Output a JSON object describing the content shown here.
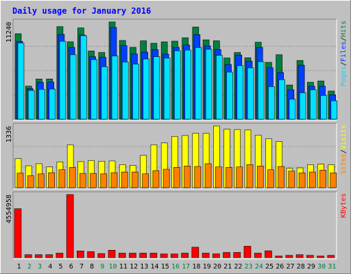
{
  "title": "Daily usage for January 2016",
  "colors": {
    "background": "#c0c0c0",
    "title": "#0000ff",
    "hits": "#008040",
    "files": "#0040ff",
    "pages": "#00e0ff",
    "visits": "#ffff00",
    "sites": "#ff8000",
    "kbytes": "#ff0000",
    "day_weekend": "#008040",
    "day_weekday": "#000000"
  },
  "chart_data": [
    {
      "type": "bar",
      "panel": "hits_files_pages",
      "max_label": "11240",
      "ylim": [
        0,
        11240
      ],
      "categories": [
        "1",
        "2",
        "3",
        "4",
        "5",
        "6",
        "7",
        "8",
        "9",
        "10",
        "11",
        "12",
        "13",
        "14",
        "15",
        "16",
        "17",
        "18",
        "19",
        "20",
        "21",
        "22",
        "23",
        "24",
        "25",
        "26",
        "27",
        "28",
        "29",
        "30",
        "31"
      ],
      "legend": [
        {
          "name": "Hits",
          "color": "#008040"
        },
        {
          "name": "Files",
          "color": "#0040ff"
        },
        {
          "name": "Pages",
          "color": "#00e0ff"
        }
      ],
      "series": [
        {
          "name": "Hits",
          "values": [
            9880,
            3820,
            4640,
            4650,
            10700,
            8950,
            10550,
            7880,
            7710,
            11240,
            9100,
            8300,
            9060,
            8780,
            8940,
            9020,
            9410,
            10650,
            9170,
            9060,
            7080,
            7710,
            7100,
            8890,
            6570,
            7450,
            3950,
            6790,
            4270,
            4420,
            3250
          ]
        },
        {
          "name": "Files",
          "values": [
            9000,
            3540,
            4260,
            4290,
            9800,
            8300,
            9740,
            7230,
            7150,
            10600,
            8500,
            7540,
            7750,
            8030,
            7520,
            8300,
            8570,
            9770,
            8470,
            8050,
            6320,
            7410,
            6710,
            8300,
            5950,
            5400,
            3400,
            6250,
            3810,
            3810,
            2820
          ]
        },
        {
          "name": "Pages",
          "values": [
            8800,
            3320,
            3460,
            3480,
            9010,
            7450,
            9650,
            6890,
            6070,
            7300,
            6610,
            6370,
            6960,
            7230,
            7060,
            7910,
            7990,
            8280,
            8080,
            7380,
            5450,
            6190,
            5940,
            6650,
            3770,
            4570,
            2310,
            3060,
            3400,
            2740,
            2130
          ]
        }
      ]
    },
    {
      "type": "bar",
      "panel": "visits_sites",
      "max_label": "1336",
      "ylim": [
        0,
        1336
      ],
      "categories": [
        "1",
        "2",
        "3",
        "4",
        "5",
        "6",
        "7",
        "8",
        "9",
        "10",
        "11",
        "12",
        "13",
        "14",
        "15",
        "16",
        "17",
        "18",
        "19",
        "20",
        "21",
        "22",
        "23",
        "24",
        "25",
        "26",
        "27",
        "28",
        "29",
        "30",
        "31"
      ],
      "legend": [
        {
          "name": "Visits",
          "color": "#ffff00"
        },
        {
          "name": "Sites",
          "color": "#ff8000"
        }
      ],
      "series": [
        {
          "name": "Visits",
          "values": [
            630,
            475,
            520,
            450,
            560,
            930,
            565,
            590,
            575,
            580,
            500,
            485,
            700,
            930,
            970,
            1110,
            1130,
            1180,
            1180,
            1336,
            1270,
            1260,
            1250,
            1140,
            1060,
            1000,
            420,
            430,
            500,
            510,
            500
          ]
        },
        {
          "name": "Sites",
          "values": [
            315,
            260,
            300,
            325,
            390,
            440,
            310,
            310,
            300,
            325,
            340,
            340,
            300,
            370,
            400,
            440,
            470,
            460,
            520,
            450,
            440,
            450,
            500,
            470,
            390,
            460,
            360,
            320,
            340,
            380,
            320
          ]
        }
      ]
    },
    {
      "type": "bar",
      "panel": "kbytes",
      "max_label": "4554958",
      "ylim": [
        0,
        4554958
      ],
      "categories": [
        "1",
        "2",
        "3",
        "4",
        "5",
        "6",
        "7",
        "8",
        "9",
        "10",
        "11",
        "12",
        "13",
        "14",
        "15",
        "16",
        "17",
        "18",
        "19",
        "20",
        "21",
        "22",
        "23",
        "24",
        "25",
        "26",
        "27",
        "28",
        "29",
        "30",
        "31"
      ],
      "legend": [
        {
          "name": "KBytes",
          "color": "#ff0000"
        }
      ],
      "series": [
        {
          "name": "KBytes",
          "values": [
            3530000,
            210000,
            210000,
            210000,
            320000,
            4554958,
            480000,
            430000,
            290000,
            530000,
            320000,
            320000,
            320000,
            320000,
            260000,
            260000,
            320000,
            750000,
            320000,
            270000,
            370000,
            370000,
            820000,
            320000,
            490000,
            110000,
            160000,
            210000,
            160000,
            110000,
            160000
          ]
        }
      ]
    }
  ],
  "weekend_days": [
    2,
    3,
    9,
    10,
    16,
    17,
    23,
    24,
    30,
    31
  ]
}
